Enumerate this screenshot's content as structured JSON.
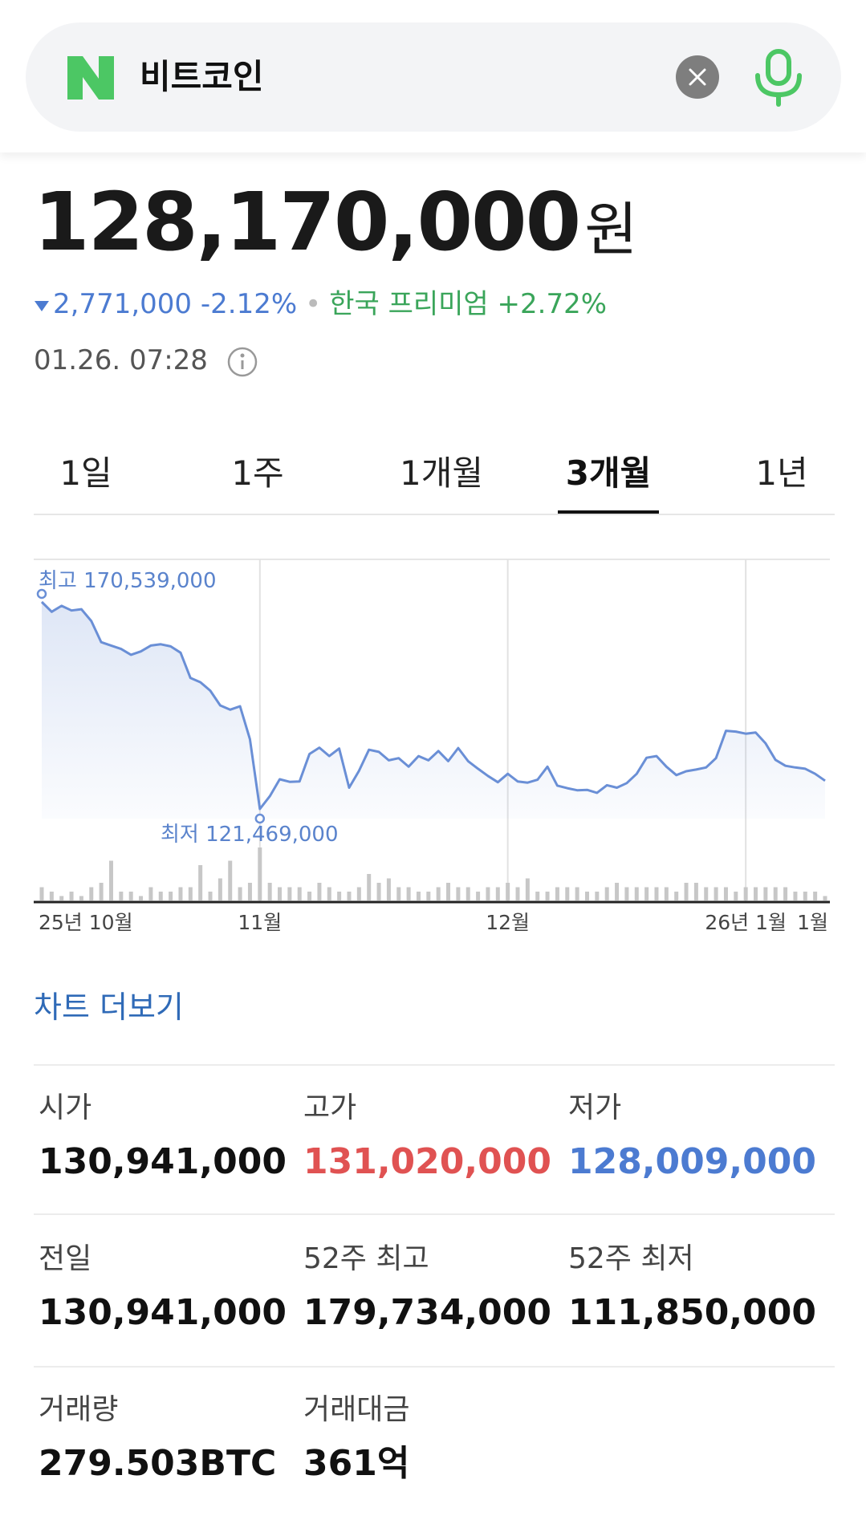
{
  "search": {
    "query": "비트코인"
  },
  "price": {
    "value": "128,170,000",
    "unit": "원"
  },
  "change": {
    "amount": "2,771,000",
    "percent": "-2.12%",
    "premium_label": "한국 프리미엄",
    "premium_value": "+2.72%"
  },
  "timestamp": "01.26. 07:28",
  "tabs": [
    "1일",
    "1주",
    "1개월",
    "3개월",
    "1년"
  ],
  "active_tab": "3개월",
  "colors": {
    "up": "#e05252",
    "down": "#4c7bd1",
    "premium": "#3aa55a",
    "line": "#6a8fd6",
    "naver_green": "#4cc764"
  },
  "chart_data": {
    "type": "line",
    "x_labels": [
      "25년 10월",
      "11월",
      "12월",
      "26년 1월",
      "1월"
    ],
    "high_label": "최고 170,539,000",
    "low_label": "최저 121,469,000",
    "high": 170539000,
    "low": 121469000,
    "series": [
      {
        "values": [
          170539000,
          168200000,
          169600000,
          168500000,
          168800000,
          166000000,
          161000000,
          160200000,
          159400000,
          158000000,
          158800000,
          160200000,
          160500000,
          160000000,
          158500000,
          152500000,
          151500000,
          149500000,
          146000000,
          145000000,
          145800000,
          138000000,
          121469000,
          124500000,
          128500000,
          127900000,
          128000000,
          134500000,
          136000000,
          134000000,
          135800000,
          126500000,
          130500000,
          135500000,
          135000000,
          133000000,
          133500000,
          131500000,
          134000000,
          133000000,
          135200000,
          132800000,
          135900000,
          132800000,
          131000000,
          129300000,
          127800000,
          129800000,
          128000000,
          127700000,
          128400000,
          131500000,
          127000000,
          126400000,
          125900000,
          126000000,
          125300000,
          127100000,
          126500000,
          127600000,
          129800000,
          133600000,
          134000000,
          131500000,
          129500000,
          130400000,
          130800000,
          131300000,
          133500000,
          140000000,
          139800000,
          139300000,
          139600000,
          137000000,
          133100000,
          131700000,
          131300000,
          131000000,
          129800000,
          128170000
        ]
      }
    ],
    "volume": [
      3,
      2,
      1,
      2,
      1,
      3,
      4,
      9,
      2,
      2,
      1,
      3,
      2,
      2,
      3,
      3,
      8,
      2,
      5,
      9,
      3,
      4,
      12,
      4,
      3,
      3,
      3,
      2,
      4,
      3,
      2,
      2,
      3,
      6,
      4,
      5,
      3,
      3,
      2,
      2,
      3,
      4,
      3,
      3,
      2,
      3,
      3,
      4,
      3,
      5,
      2,
      2,
      3,
      3,
      3,
      2,
      2,
      3,
      4,
      3,
      3,
      3,
      3,
      3,
      2,
      4,
      4,
      3,
      3,
      3,
      2,
      3,
      3,
      3,
      3,
      3,
      2,
      2,
      2,
      1
    ],
    "grid": true,
    "more_label": "차트 더보기"
  },
  "stats": [
    {
      "label": "시가",
      "value": "130,941,000",
      "tone": "normal"
    },
    {
      "label": "고가",
      "value": "131,020,000",
      "tone": "up"
    },
    {
      "label": "저가",
      "value": "128,009,000",
      "tone": "down"
    },
    {
      "label": "전일",
      "value": "130,941,000",
      "tone": "normal"
    },
    {
      "label": "52주 최고",
      "value": "179,734,000",
      "tone": "normal"
    },
    {
      "label": "52주 최저",
      "value": "111,850,000",
      "tone": "normal"
    },
    {
      "label": "거래량",
      "value": "279.503BTC",
      "tone": "normal"
    },
    {
      "label": "거래대금",
      "value": "361억",
      "tone": "normal"
    }
  ]
}
